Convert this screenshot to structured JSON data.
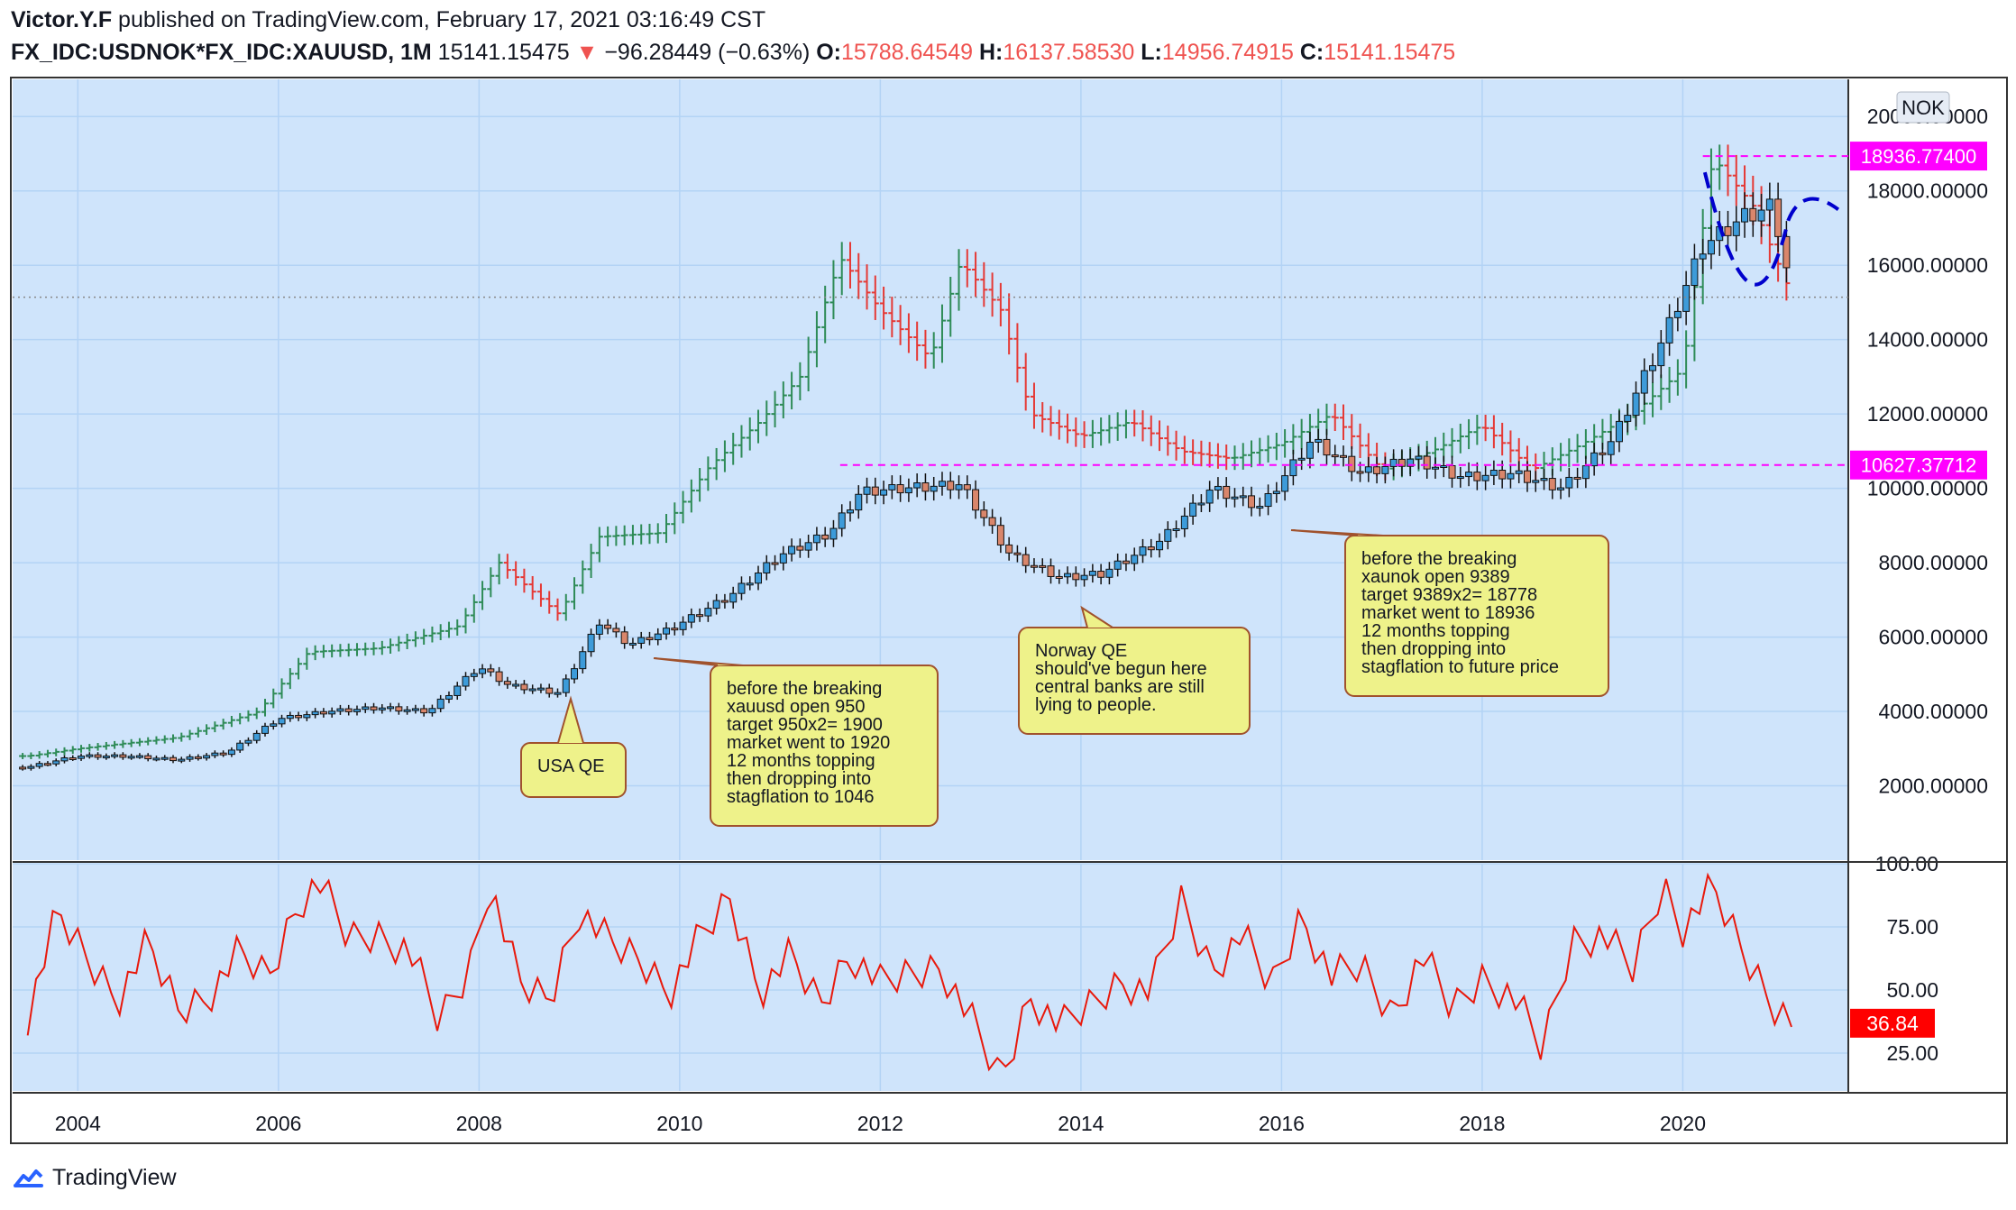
{
  "header": {
    "author": "Victor.Y.F",
    "published": "published on TradingView.com, February 17, 2021 03:16:49 CST",
    "symbol": "FX_IDC:USDNOK*FX_IDC:XAUUSD, 1M",
    "last": "15141.15475",
    "change_arrow": "▼",
    "change": "−96.28449 (−0.63%)",
    "o_label": "O:",
    "o": "15788.64549",
    "h_label": "H:",
    "h": "16137.58530",
    "l_label": "L:",
    "l": "14956.74915",
    "c_label": "C:",
    "c": "15141.15475"
  },
  "footer": {
    "brand": "TradingView"
  },
  "colors": {
    "bg": "#cfe4fb",
    "up": "#26a69a",
    "down": "#ef5350",
    "magenta": "#ff00ff",
    "rsi": "#e8190c",
    "grid": "#b3d3f5"
  },
  "chart_data": [
    {
      "type": "line",
      "title": "",
      "scale_label": "NOK",
      "x_ticks": [
        "2004",
        "2006",
        "2008",
        "2010",
        "2012",
        "2014",
        "2016",
        "2018",
        "2020"
      ],
      "y_ticks": [
        "2000.00000",
        "4000.00000",
        "6000.00000",
        "8000.00000",
        "10000.00000",
        "12000.00000",
        "14000.00000",
        "16000.00000",
        "18000.00000",
        "20000.00000"
      ],
      "ylim": [
        0,
        21000
      ],
      "series": [
        {
          "name": "",
          "note": "",
          "x": [
            2003.5,
            2004,
            2004.5,
            2005,
            2005.5,
            2006,
            2006.5,
            2007,
            2007.5,
            2008,
            2008.3,
            2008.8,
            2009.2,
            2009.5,
            2009.9,
            2010.5,
            2011,
            2011.5,
            2011.8,
            2012.2,
            2012.8,
            2013.3,
            2013.8,
            2014.2,
            2014.8,
            2015.3,
            2015.8,
            2016.3,
            2016.8,
            2017.3,
            2017.8,
            2018.3,
            2018.8,
            2019.3,
            2019.8,
            2020.2,
            2020.6,
            2020.9,
            2021.1
          ],
          "y": [
            2500,
            2800,
            2800,
            2700,
            2900,
            3800,
            4000,
            4100,
            4000,
            5200,
            4700,
            4500,
            6400,
            5800,
            6200,
            7100,
            8200,
            8800,
            9900,
            10000,
            10100,
            8200,
            7600,
            7700,
            8600,
            10000,
            9500,
            11300,
            10400,
            10800,
            10300,
            10400,
            10000,
            11300,
            14000,
            16500,
            17300,
            17600,
            15100
          ]
        },
        {
          "name": "",
          "note": "",
          "x": [
            2003.5,
            2004,
            2005,
            2005.8,
            2006.3,
            2007,
            2007.8,
            2008.2,
            2008.8,
            2009.2,
            2009.8,
            2010.3,
            2010.8,
            2011.2,
            2011.6,
            2012,
            2012.5,
            2012.8,
            2013.2,
            2013.5,
            2014,
            2014.5,
            2015,
            2015.5,
            2016,
            2016.5,
            2017,
            2017.5,
            2018,
            2018.5,
            2019,
            2019.5,
            2020,
            2020.3,
            2020.7,
            2021.1
          ],
          "y": [
            2800,
            3000,
            3300,
            4000,
            5600,
            5700,
            6300,
            8000,
            6600,
            8700,
            8800,
            10600,
            11800,
            13000,
            16200,
            14800,
            13500,
            16100,
            14800,
            12000,
            11400,
            11800,
            11000,
            10800,
            11200,
            12000,
            10500,
            11000,
            11700,
            10500,
            11200,
            12000,
            13200,
            18900,
            17600,
            15100
          ]
        }
      ],
      "levels": [
        {
          "label": "18936.77400",
          "value": 18936.774
        },
        {
          "label": "10627.37712",
          "value": 10627.37712
        }
      ],
      "last_value": 15141.15475,
      "annotations": [
        {
          "text": "USA QE"
        },
        {
          "text": "before the breaking\nxauusd open 950\ntarget 950x2= 1900\nmarket went to 1920\n12 months topping\nthen dropping into\nstagflation to 1046"
        },
        {
          "text": "Norway QE\nshould've begun here\ncentral banks are still\n lying to people."
        },
        {
          "text": "before the breaking\nxaunok open 9389\ntarget 9389x2= 18778\nmarket went to 18936\n12 months topping\nthen dropping into\nstagflation to future price"
        }
      ]
    },
    {
      "type": "line",
      "title": "",
      "y_ticks": [
        "25.00",
        "50.00",
        "75.00",
        "100.00"
      ],
      "ylim": [
        10,
        100
      ],
      "series": [
        {
          "name": "",
          "x": [
            2003.5,
            2003.8,
            2004.1,
            2004.4,
            2004.7,
            2005.0,
            2005.3,
            2005.6,
            2005.9,
            2006.2,
            2006.4,
            2006.7,
            2007.0,
            2007.3,
            2007.6,
            2007.9,
            2008.1,
            2008.4,
            2008.7,
            2009.0,
            2009.3,
            2009.6,
            2009.9,
            2010.2,
            2010.5,
            2010.8,
            2011.1,
            2011.4,
            2011.7,
            2012.0,
            2012.3,
            2012.6,
            2012.9,
            2013.2,
            2013.5,
            2013.8,
            2014.1,
            2014.4,
            2014.7,
            2015.0,
            2015.3,
            2015.6,
            2015.9,
            2016.2,
            2016.5,
            2016.8,
            2017.1,
            2017.4,
            2017.7,
            2018.0,
            2018.3,
            2018.6,
            2018.9,
            2019.2,
            2019.5,
            2019.8,
            2020.0,
            2020.3,
            2020.6,
            2020.9,
            2021.1
          ],
          "y": [
            40,
            80,
            62,
            47,
            68,
            42,
            48,
            64,
            55,
            85,
            93,
            70,
            72,
            66,
            37,
            58,
            93,
            52,
            46,
            82,
            68,
            62,
            50,
            70,
            86,
            50,
            63,
            44,
            65,
            52,
            56,
            60,
            38,
            14,
            48,
            35,
            44,
            54,
            49,
            85,
            58,
            72,
            51,
            80,
            55,
            59,
            40,
            64,
            42,
            55,
            48,
            26,
            70,
            72,
            58,
            92,
            75,
            90,
            65,
            45,
            38
          ]
        }
      ],
      "last_value_label": "36.84",
      "last_value": 36.84
    }
  ]
}
